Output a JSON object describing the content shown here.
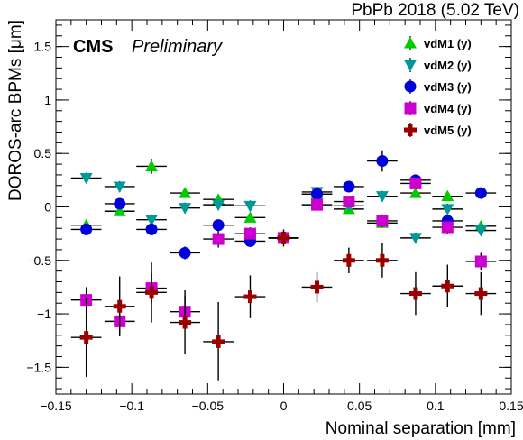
{
  "chart_data": {
    "type": "scatter",
    "title": "PbPb 2018 (5.02 TeV)",
    "experiment": "CMS",
    "status": "Preliminary",
    "xlabel": "Nominal separation [mm]",
    "ylabel": "DOROS-arc BPMs [μm]",
    "xlim": [
      -0.15,
      0.15
    ],
    "ylim": [
      -1.75,
      1.75
    ],
    "x_ticks": [
      -0.15,
      -0.1,
      -0.05,
      0,
      0.05,
      0.1,
      0.15
    ],
    "x_tick_labels": [
      "−0.15",
      "−0.1",
      "−0.05",
      "0",
      "0.05",
      "0.1",
      "0.15"
    ],
    "y_ticks": [
      -1.5,
      -1,
      -0.5,
      0,
      0.5,
      1,
      1.5
    ],
    "y_tick_labels": [
      "−1.5",
      "−1",
      "−0.5",
      "0",
      "0.5",
      "1",
      "1.5"
    ],
    "legend_position": "top-right",
    "grid": false,
    "series": [
      {
        "name": "vdM1 (y)",
        "marker": "triangle-up",
        "color": "#00cc00",
        "x": [
          -0.13,
          -0.108,
          -0.087,
          -0.065,
          -0.043,
          -0.022,
          0.0,
          0.022,
          0.043,
          0.065,
          0.087,
          0.108,
          0.13
        ],
        "y": [
          -0.17,
          -0.04,
          0.38,
          0.13,
          0.07,
          -0.1,
          -0.29,
          0.12,
          -0.02,
          -0.15,
          0.13,
          0.1,
          -0.18
        ],
        "yerr": [
          0.04,
          0.04,
          0.07,
          0.04,
          0.04,
          0.04,
          0.04,
          0.04,
          0.04,
          0.04,
          0.04,
          0.04,
          0.04
        ]
      },
      {
        "name": "vdM2 (y)",
        "marker": "triangle-down",
        "color": "#009999",
        "x": [
          -0.13,
          -0.108,
          -0.087,
          -0.065,
          -0.043,
          -0.022,
          0.0,
          0.022,
          0.043,
          0.065,
          0.087,
          0.108,
          0.13
        ],
        "y": [
          0.27,
          0.19,
          -0.12,
          -0.01,
          0.02,
          0.01,
          -0.29,
          0.14,
          0.01,
          0.1,
          -0.29,
          -0.02,
          -0.22
        ],
        "yerr": [
          0.05,
          0.05,
          0.05,
          0.05,
          0.05,
          0.05,
          0.05,
          0.05,
          0.05,
          0.05,
          0.05,
          0.05,
          0.05
        ]
      },
      {
        "name": "vdM3 (y)",
        "marker": "circle",
        "color": "#0000dd",
        "x": [
          -0.13,
          -0.108,
          -0.087,
          -0.065,
          -0.043,
          -0.022,
          0.0,
          0.022,
          0.043,
          0.065,
          0.087,
          0.108,
          0.13
        ],
        "y": [
          -0.21,
          0.03,
          -0.21,
          -0.43,
          -0.17,
          -0.32,
          -0.29,
          0.12,
          0.19,
          0.43,
          0.25,
          -0.13,
          0.13
        ],
        "yerr": [
          0.05,
          0.05,
          0.05,
          0.06,
          0.05,
          0.05,
          0.05,
          0.06,
          0.05,
          0.1,
          0.05,
          0.05,
          0.05
        ]
      },
      {
        "name": "vdM4 (y)",
        "marker": "square",
        "color": "#cc00cc",
        "x": [
          -0.13,
          -0.108,
          -0.087,
          -0.065,
          -0.043,
          -0.022,
          0.0,
          0.022,
          0.043,
          0.065,
          0.087,
          0.108,
          0.13
        ],
        "y": [
          -0.87,
          -1.07,
          -0.76,
          -0.98,
          -0.3,
          -0.25,
          -0.29,
          0.02,
          0.05,
          -0.13,
          0.22,
          -0.19,
          -0.51
        ],
        "yerr": [
          0.12,
          0.12,
          0.14,
          0.15,
          0.08,
          0.06,
          0.06,
          0.05,
          0.05,
          0.06,
          0.05,
          0.06,
          0.08
        ]
      },
      {
        "name": "vdM5 (y)",
        "marker": "cross",
        "color": "#990000",
        "x": [
          -0.13,
          -0.108,
          -0.087,
          -0.065,
          -0.043,
          -0.022,
          0.0,
          0.022,
          0.043,
          0.065,
          0.087,
          0.108,
          0.13
        ],
        "y": [
          -1.22,
          -0.93,
          -0.8,
          -1.08,
          -1.26,
          -0.84,
          -0.29,
          -0.75,
          -0.5,
          -0.5,
          -0.81,
          -0.74,
          -0.81
        ],
        "yerr": [
          0.37,
          0.28,
          0.28,
          0.3,
          0.37,
          0.2,
          0.08,
          0.14,
          0.12,
          0.16,
          0.2,
          0.2,
          0.2
        ]
      }
    ]
  }
}
